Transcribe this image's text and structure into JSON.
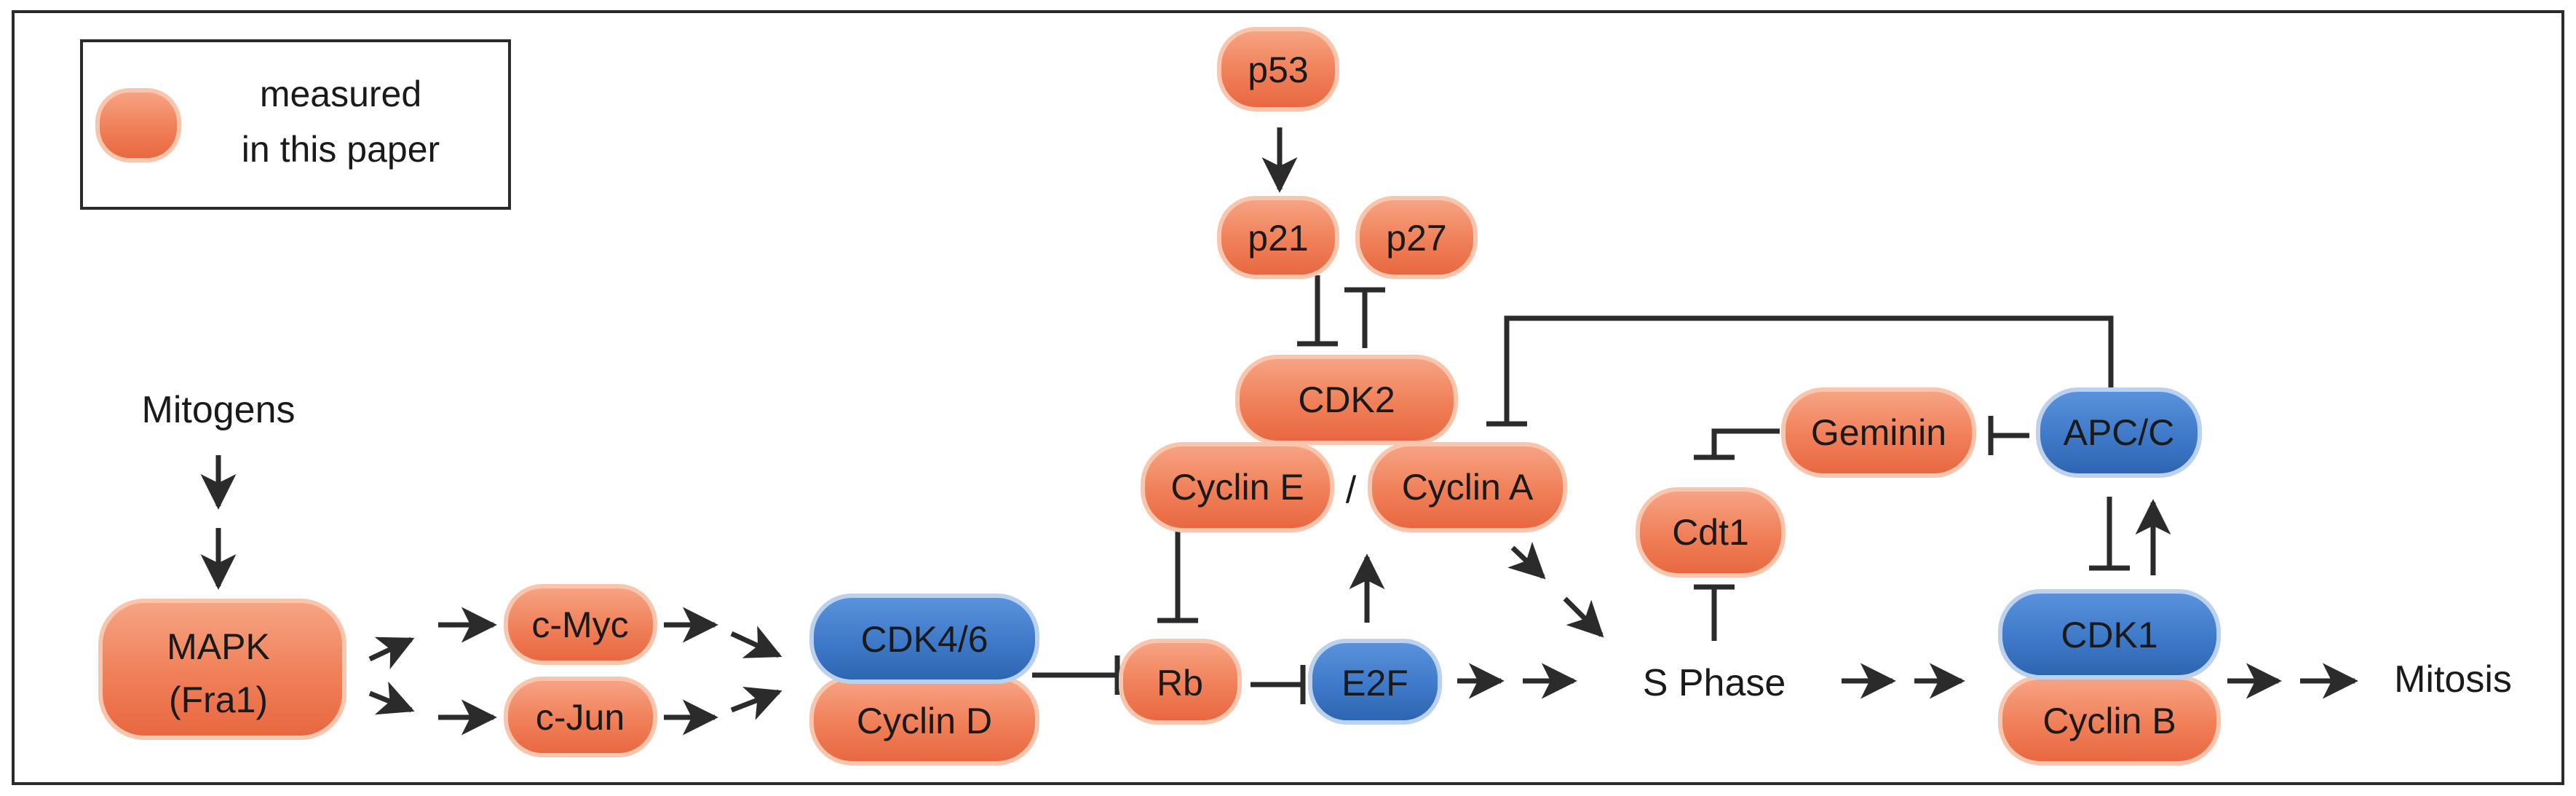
{
  "colors": {
    "measured": "#f07f58",
    "measured_edge": "#f9c6ad",
    "other": "#3e79c8",
    "other_edge": "#bcd1ee",
    "line": "#2b2b2b"
  },
  "legend": {
    "line1": "measured",
    "line2": "in this paper"
  },
  "labels": {
    "mitogens": "Mitogens",
    "s_phase": "S Phase",
    "mitosis": "Mitosis",
    "slash": "/"
  },
  "nodes": {
    "p53": "p53",
    "p21": "p21",
    "p27": "p27",
    "cdk2": "CDK2",
    "cyclin_e": "Cyclin E",
    "cyclin_a": "Cyclin A",
    "mapk_1": "MAPK",
    "mapk_2": "(Fra1)",
    "cmyc": "c-Myc",
    "cjun": "c-Jun",
    "cdk46": "CDK4/6",
    "cyclin_d": "Cyclin D",
    "rb": "Rb",
    "e2f": "E2F",
    "cdt1": "Cdt1",
    "geminin": "Geminin",
    "apcc": "APC/C",
    "cdk1": "CDK1",
    "cyclin_b": "Cyclin B"
  }
}
